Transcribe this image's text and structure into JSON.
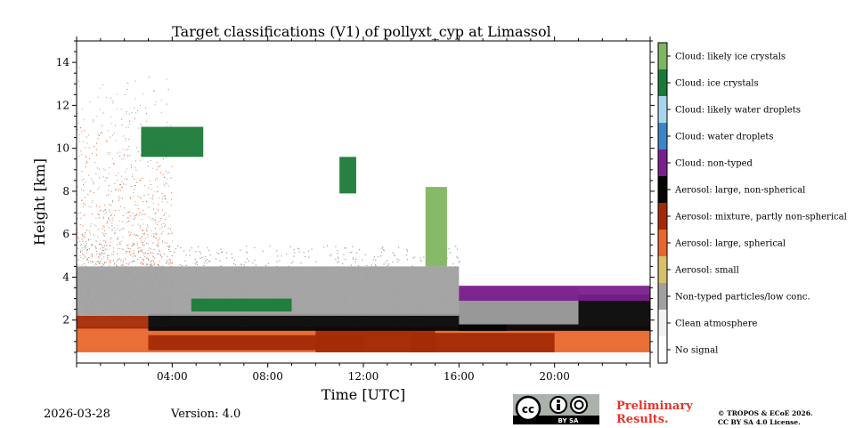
{
  "chart_data": {
    "type": "heatmap",
    "title": "Target classifications (V1) of pollyxt_cyp at Limassol",
    "xlabel": "Time [UTC]",
    "ylabel": "Height [km]",
    "xlim": [
      0,
      24
    ],
    "ylim": [
      0,
      15
    ],
    "x_ticks": [
      {
        "value": 4,
        "label": "04:00"
      },
      {
        "value": 8,
        "label": "08:00"
      },
      {
        "value": 12,
        "label": "12:00"
      },
      {
        "value": 16,
        "label": "16:00"
      },
      {
        "value": 20,
        "label": "20:00"
      }
    ],
    "y_ticks": [
      {
        "value": 2,
        "label": "2"
      },
      {
        "value": 4,
        "label": "4"
      },
      {
        "value": 6,
        "label": "6"
      },
      {
        "value": 8,
        "label": "8"
      },
      {
        "value": 10,
        "label": "10"
      },
      {
        "value": 12,
        "label": "12"
      },
      {
        "value": 14,
        "label": "14"
      }
    ],
    "classes": [
      {
        "label": "No signal",
        "color": "#ffffff"
      },
      {
        "label": "Clean atmosphere",
        "color": "#f2f2f2"
      },
      {
        "label": "Non-typed particles/low conc.",
        "color": "#a0a0a0"
      },
      {
        "label": "Aerosol: small",
        "color": "#d8c06a"
      },
      {
        "label": "Aerosol: large, spherical",
        "color": "#e8672c"
      },
      {
        "label": "Aerosol: mixture, partly non-spherical",
        "color": "#a42a06"
      },
      {
        "label": "Aerosol: large, non-spherical",
        "color": "#050505"
      },
      {
        "label": "Cloud: non-typed",
        "color": "#7a1f8e"
      },
      {
        "label": "Cloud: water droplets",
        "color": "#3a86c8"
      },
      {
        "label": "Cloud: likely water droplets",
        "color": "#a8d4f0"
      },
      {
        "label": "Cloud: ice crystals",
        "color": "#1a7a38"
      },
      {
        "label": "Cloud: likely ice crystals",
        "color": "#7fb560"
      }
    ],
    "regions": [
      {
        "cls": 4,
        "t0": 0,
        "t1": 24,
        "h0": 0.5,
        "h1": 1.7
      },
      {
        "cls": 5,
        "t0": 3,
        "t1": 12,
        "h0": 0.6,
        "h1": 1.3
      },
      {
        "cls": 5,
        "t0": 10,
        "t1": 15,
        "h0": 0.5,
        "h1": 1.6
      },
      {
        "cls": 5,
        "t0": 14,
        "t1": 20,
        "h0": 0.5,
        "h1": 1.4
      },
      {
        "cls": 6,
        "t0": 3,
        "t1": 18,
        "h0": 1.5,
        "h1": 2.3
      },
      {
        "cls": 6,
        "t0": 16,
        "t1": 24,
        "h0": 1.5,
        "h1": 3.2
      },
      {
        "cls": 5,
        "t0": 0,
        "t1": 3,
        "h0": 1.6,
        "h1": 2.2
      },
      {
        "cls": 2,
        "t0": 0,
        "t1": 16,
        "h0": 2.2,
        "h1": 4.5
      },
      {
        "cls": 2,
        "t0": 16,
        "t1": 21,
        "h0": 1.8,
        "h1": 3.5
      },
      {
        "cls": 10,
        "t0": 4.8,
        "t1": 9,
        "h0": 2.4,
        "h1": 3.0
      },
      {
        "cls": 10,
        "t0": 2.7,
        "t1": 5.3,
        "h0": 9.6,
        "h1": 11
      },
      {
        "cls": 10,
        "t0": 11,
        "t1": 11.7,
        "h0": 7.9,
        "h1": 9.6
      },
      {
        "cls": 11,
        "t0": 14.6,
        "t1": 15.5,
        "h0": 4.5,
        "h1": 8.2
      },
      {
        "cls": 7,
        "t0": 16,
        "t1": 24,
        "h0": 2.9,
        "h1": 3.6
      }
    ]
  },
  "footer": {
    "date": "2026-03-28",
    "version": "Version: 4.0",
    "cc_label": "BY SA",
    "preliminary_line1": "Preliminary",
    "preliminary_line2": "Results.",
    "copyright_line1": "© TROPOS & ECoE 2026.",
    "copyright_line2": "CC BY SA 4.0 License."
  }
}
